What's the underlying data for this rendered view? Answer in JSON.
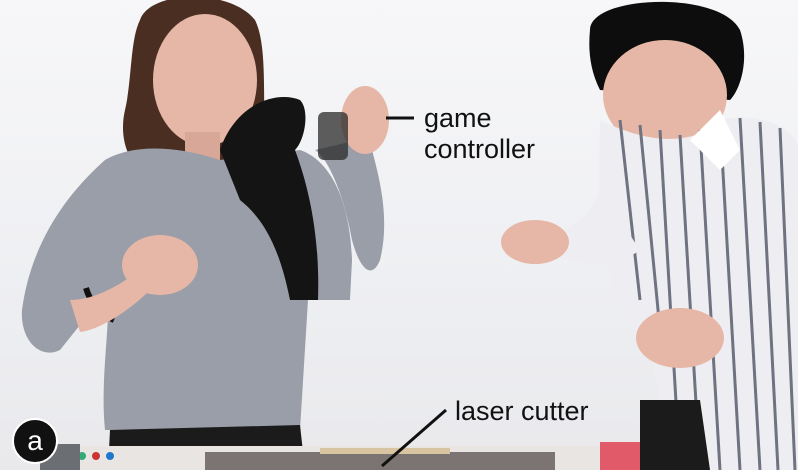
{
  "figure": {
    "panel_label": "a",
    "annotations": {
      "game_controller_line1": "game",
      "game_controller_line2": "controller",
      "laser_cutter": "laser cutter"
    }
  },
  "colors": {
    "background": "#f1f1f3",
    "sweater": "#9a9ea8",
    "hair_woman": "#4a2e22",
    "jacket": "#141414",
    "shirt_stripes": "#6f7280",
    "hair_man": "#0d0d0d",
    "skin": "#e6b7a6",
    "laser_cutter_body": "#e9e5e3",
    "laser_cutter_accent": "#e05a6a"
  }
}
